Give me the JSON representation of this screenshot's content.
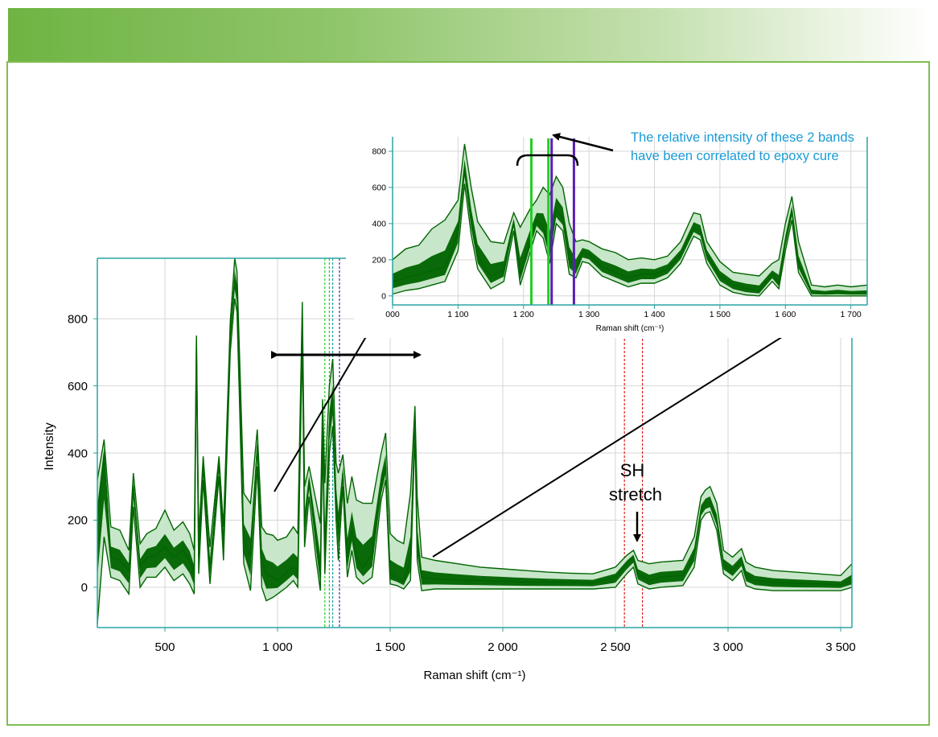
{
  "colors": {
    "header_gradient_start": "#6fb443",
    "frame_border": "#82bd52",
    "spectrum_fill": "#0a6a0a",
    "spectrum_light_fill": "#c8e6c9",
    "spectrum_line": "#006400",
    "axis": "#2aa3a3",
    "callout_text": "#1a9bd7",
    "band_green": "#22d022",
    "band_purple": "#5a1fb5",
    "sh_marker": "#e02020"
  },
  "main_chart": {
    "ylabel": "Intensity",
    "xlabel": "Raman shift (cm⁻¹)",
    "xticks": [
      "500",
      "1 000",
      "1 500",
      "2 000",
      "2 500",
      "3 000",
      "3 500"
    ],
    "yticks": [
      "0",
      "200",
      "400",
      "600",
      "800"
    ],
    "annotation_sh": "SH",
    "annotation_stretch": "stretch"
  },
  "inset_chart": {
    "xlabel": "Raman shift (cm⁻¹)",
    "xticks": [
      "000",
      "1 100",
      "1 200",
      "1 300",
      "1 400",
      "1 500",
      "1 600",
      "1 700"
    ],
    "yticks": [
      "0",
      "200",
      "400",
      "600",
      "800"
    ]
  },
  "callout": {
    "line1": "The relative intensity of these 2 bands",
    "line2": "have been correlated to epoxy cure"
  },
  "chart_data": [
    {
      "type": "area",
      "title": "",
      "xlabel": "Raman shift (cm⁻¹)",
      "ylabel": "Intensity",
      "xlim": [
        200,
        3550
      ],
      "ylim": [
        -120,
        980
      ],
      "grid": true,
      "series": [
        {
          "role": "max",
          "x": [
            200,
            230,
            260,
            300,
            340,
            360,
            390,
            420,
            460,
            500,
            540,
            580,
            610,
            630,
            640,
            650,
            670,
            700,
            740,
            760,
            790,
            810,
            820,
            830,
            850,
            880,
            910,
            930,
            950,
            980,
            1000,
            1040,
            1070,
            1090,
            1110,
            1120,
            1140,
            1170,
            1190,
            1200,
            1210,
            1230,
            1245,
            1260,
            1270,
            1290,
            1310,
            1330,
            1350,
            1380,
            1420,
            1460,
            1480,
            1500,
            1530,
            1560,
            1590,
            1610,
            1620,
            1640,
            1700,
            1800,
            1900,
            2000,
            2100,
            2200,
            2300,
            2400,
            2500,
            2550,
            2580,
            2600,
            2650,
            2700,
            2800,
            2850,
            2880,
            2900,
            2920,
            2950,
            2980,
            3020,
            3060,
            3080,
            3120,
            3200,
            3300,
            3400,
            3500,
            3550
          ],
          "y": [
            320,
            440,
            180,
            170,
            110,
            340,
            130,
            160,
            175,
            230,
            170,
            195,
            160,
            110,
            750,
            150,
            390,
            120,
            390,
            180,
            790,
            990,
            940,
            720,
            280,
            250,
            470,
            180,
            160,
            155,
            140,
            150,
            180,
            160,
            850,
            300,
            360,
            260,
            190,
            560,
            310,
            600,
            680,
            370,
            340,
            395,
            250,
            330,
            260,
            250,
            250,
            400,
            460,
            160,
            140,
            130,
            280,
            540,
            270,
            90,
            80,
            70,
            60,
            55,
            50,
            45,
            42,
            40,
            60,
            95,
            110,
            80,
            70,
            75,
            80,
            150,
            270,
            290,
            300,
            250,
            110,
            90,
            115,
            75,
            60,
            50,
            45,
            40,
            35,
            70
          ]
        },
        {
          "role": "mean",
          "x": [
            200,
            230,
            260,
            300,
            340,
            360,
            390,
            420,
            460,
            500,
            540,
            580,
            610,
            630,
            640,
            650,
            670,
            700,
            740,
            760,
            790,
            810,
            820,
            830,
            850,
            880,
            910,
            930,
            950,
            980,
            1000,
            1040,
            1070,
            1090,
            1110,
            1120,
            1140,
            1170,
            1190,
            1200,
            1210,
            1230,
            1245,
            1260,
            1270,
            1290,
            1310,
            1330,
            1350,
            1380,
            1420,
            1460,
            1480,
            1500,
            1530,
            1560,
            1590,
            1610,
            1620,
            1640,
            1700,
            1800,
            1900,
            2000,
            2100,
            2200,
            2300,
            2400,
            2500,
            2550,
            2580,
            2600,
            2650,
            2700,
            2800,
            2850,
            2880,
            2900,
            2920,
            2950,
            2980,
            3020,
            3060,
            3080,
            3120,
            3200,
            3300,
            3400,
            3500,
            3550
          ],
          "y": [
            200,
            400,
            90,
            80,
            50,
            300,
            60,
            90,
            95,
            120,
            90,
            110,
            80,
            40,
            740,
            90,
            360,
            60,
            370,
            130,
            750,
            920,
            880,
            650,
            140,
            90,
            420,
            80,
            40,
            30,
            20,
            45,
            60,
            50,
            800,
            180,
            320,
            150,
            40,
            500,
            100,
            480,
            560,
            260,
            160,
            340,
            90,
            170,
            90,
            60,
            100,
            300,
            360,
            40,
            30,
            20,
            80,
            500,
            130,
            30,
            25,
            22,
            20,
            18,
            16,
            15,
            14,
            13,
            30,
            70,
            90,
            40,
            20,
            30,
            35,
            100,
            230,
            250,
            255,
            200,
            70,
            50,
            80,
            35,
            20,
            15,
            12,
            10,
            8,
            20
          ]
        },
        {
          "role": "min",
          "x": [
            200,
            230,
            260,
            300,
            340,
            360,
            390,
            420,
            460,
            500,
            540,
            580,
            610,
            630,
            640,
            650,
            670,
            700,
            740,
            760,
            790,
            810,
            820,
            830,
            850,
            880,
            910,
            930,
            950,
            980,
            1000,
            1040,
            1070,
            1090,
            1110,
            1120,
            1140,
            1170,
            1190,
            1200,
            1210,
            1230,
            1245,
            1260,
            1270,
            1290,
            1310,
            1330,
            1350,
            1380,
            1420,
            1460,
            1480,
            1500,
            1530,
            1560,
            1590,
            1610,
            1620,
            1640,
            1700,
            1800,
            1900,
            2000,
            2100,
            2200,
            2300,
            2400,
            2500,
            2550,
            2580,
            2600,
            2650,
            2700,
            2800,
            2850,
            2880,
            2900,
            2920,
            2950,
            2980,
            3020,
            3060,
            3080,
            3120,
            3200,
            3300,
            3400,
            3500,
            3550
          ],
          "y": [
            -110,
            150,
            30,
            20,
            -20,
            240,
            0,
            30,
            30,
            60,
            20,
            40,
            10,
            -20,
            700,
            40,
            320,
            10,
            330,
            80,
            700,
            860,
            820,
            580,
            70,
            -10,
            360,
            0,
            -40,
            -30,
            -20,
            0,
            20,
            0,
            740,
            120,
            270,
            90,
            -10,
            440,
            40,
            400,
            480,
            200,
            80,
            300,
            30,
            110,
            30,
            10,
            30,
            260,
            320,
            10,
            5,
            -5,
            20,
            460,
            80,
            -10,
            -5,
            -5,
            -5,
            -5,
            -5,
            -5,
            -5,
            -5,
            0,
            40,
            60,
            10,
            -5,
            0,
            5,
            60,
            200,
            220,
            225,
            170,
            40,
            20,
            50,
            5,
            -5,
            -10,
            -10,
            -10,
            -10,
            0
          ]
        }
      ],
      "reference_lines_x": [
        {
          "x": 1210,
          "color": "green"
        },
        {
          "x": 1230,
          "color": "green"
        },
        {
          "x": 1245,
          "color": "teal"
        },
        {
          "x": 1275,
          "color": "purple"
        },
        {
          "x": 2540,
          "color": "red"
        },
        {
          "x": 2620,
          "color": "red"
        }
      ]
    },
    {
      "type": "area",
      "title": "",
      "xlabel": "Raman shift (cm⁻¹)",
      "ylabel": "",
      "xlim": [
        1000,
        1725
      ],
      "ylim": [
        -50,
        880
      ],
      "grid": true,
      "series": [
        {
          "role": "max",
          "x": [
            1000,
            1020,
            1040,
            1060,
            1080,
            1100,
            1110,
            1120,
            1130,
            1150,
            1170,
            1185,
            1195,
            1210,
            1220,
            1230,
            1240,
            1250,
            1260,
            1270,
            1280,
            1290,
            1300,
            1320,
            1340,
            1360,
            1380,
            1400,
            1420,
            1440,
            1460,
            1470,
            1480,
            1500,
            1520,
            1540,
            1560,
            1580,
            1590,
            1600,
            1610,
            1620,
            1640,
            1660,
            1680,
            1700,
            1725
          ],
          "y": [
            200,
            260,
            280,
            370,
            420,
            530,
            840,
            600,
            410,
            300,
            290,
            460,
            380,
            480,
            530,
            600,
            560,
            660,
            600,
            400,
            300,
            310,
            300,
            260,
            240,
            200,
            210,
            200,
            220,
            300,
            460,
            450,
            300,
            190,
            130,
            120,
            110,
            180,
            200,
            400,
            550,
            300,
            60,
            50,
            60,
            50,
            60
          ]
        },
        {
          "role": "mean",
          "x": [
            1000,
            1020,
            1040,
            1060,
            1080,
            1100,
            1110,
            1120,
            1130,
            1150,
            1170,
            1185,
            1195,
            1210,
            1220,
            1230,
            1240,
            1250,
            1260,
            1270,
            1280,
            1290,
            1300,
            1320,
            1340,
            1360,
            1380,
            1400,
            1420,
            1440,
            1460,
            1470,
            1480,
            1500,
            1520,
            1540,
            1560,
            1580,
            1590,
            1600,
            1610,
            1620,
            1640,
            1660,
            1680,
            1700,
            1725
          ],
          "y": [
            80,
            100,
            120,
            140,
            160,
            350,
            710,
            420,
            220,
            110,
            140,
            410,
            120,
            300,
            420,
            380,
            250,
            480,
            430,
            200,
            150,
            240,
            230,
            160,
            130,
            100,
            120,
            120,
            150,
            230,
            380,
            360,
            230,
            110,
            60,
            40,
            30,
            120,
            70,
            300,
            470,
            180,
            20,
            15,
            20,
            15,
            15
          ]
        },
        {
          "role": "min",
          "x": [
            1000,
            1020,
            1040,
            1060,
            1080,
            1100,
            1110,
            1120,
            1130,
            1150,
            1170,
            1185,
            1195,
            1210,
            1220,
            1230,
            1240,
            1250,
            1260,
            1270,
            1280,
            1290,
            1300,
            1320,
            1340,
            1360,
            1380,
            1400,
            1420,
            1440,
            1460,
            1470,
            1480,
            1500,
            1520,
            1540,
            1560,
            1580,
            1590,
            1600,
            1610,
            1620,
            1640,
            1660,
            1680,
            1700,
            1725
          ],
          "y": [
            10,
            30,
            40,
            60,
            80,
            250,
            620,
            340,
            150,
            40,
            80,
            360,
            60,
            240,
            360,
            320,
            180,
            400,
            360,
            120,
            100,
            190,
            180,
            110,
            80,
            50,
            70,
            70,
            100,
            180,
            330,
            310,
            180,
            60,
            20,
            5,
            0,
            80,
            40,
            250,
            420,
            130,
            0,
            0,
            0,
            0,
            0
          ]
        }
      ],
      "reference_lines_x": [
        {
          "x": 1212,
          "color": "green"
        },
        {
          "x": 1238,
          "color": "green"
        },
        {
          "x": 1243,
          "color": "purple"
        },
        {
          "x": 1277,
          "color": "purple"
        }
      ]
    }
  ]
}
